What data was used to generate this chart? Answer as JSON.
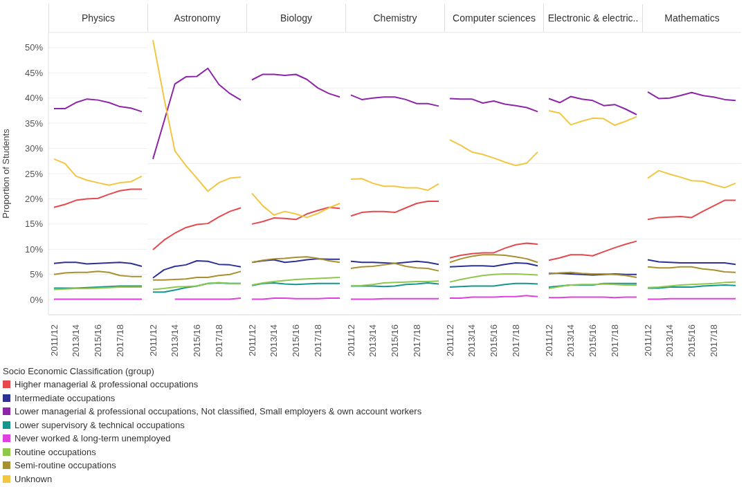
{
  "chart_data": [
    {
      "type": "line",
      "title": "Physics",
      "ylabel": "Proportion of Students",
      "legend_title": "Socio Economic Classification (group)",
      "legend": "bottom",
      "grid": "y",
      "marker": "none",
      "line_style": "solid",
      "categories": [
        "2011/12",
        null,
        "2013/14",
        null,
        "2015/16",
        null,
        "2017/18",
        null,
        null
      ],
      "ylim": [
        -3,
        53
      ],
      "yticks": [
        {
          "value": 0,
          "label": "0%"
        },
        {
          "value": 5,
          "label": "5%"
        },
        {
          "value": 10,
          "label": "10%"
        },
        {
          "value": 15,
          "label": "15%"
        },
        {
          "value": 20,
          "label": "20%"
        },
        {
          "value": 25,
          "label": "25%"
        },
        {
          "value": 30,
          "label": "30%"
        },
        {
          "value": 35,
          "label": "35%"
        },
        {
          "value": 40,
          "label": "40%"
        },
        {
          "value": 45,
          "label": "45%"
        },
        {
          "value": 50,
          "label": "50%"
        }
      ],
      "series": [
        {
          "name": "Higher managerial & professional occupations",
          "color": "#e5484d",
          "values": [
            18.3,
            18.9,
            19.7,
            20.0,
            20.1,
            20.9,
            21.6,
            21.9,
            21.9
          ]
        },
        {
          "name": "Intermediate occupations",
          "color": "#2e3192",
          "values": [
            7.2,
            7.4,
            7.4,
            7.1,
            7.2,
            7.3,
            7.4,
            7.2,
            6.6
          ]
        },
        {
          "name": "Lower managerial & professional occupations, Not classified, Small employers & own account workers",
          "color": "#8e24aa",
          "values": [
            37.9,
            37.9,
            39.1,
            39.8,
            39.6,
            39.1,
            38.3,
            38.0,
            37.3
          ]
        },
        {
          "name": "Lower supervisory & technical occupations",
          "color": "#14968f",
          "values": [
            2.3,
            2.3,
            2.3,
            2.4,
            2.5,
            2.6,
            2.7,
            2.7,
            2.7
          ]
        },
        {
          "name": "Never worked & long-term unemployed",
          "color": "#e040e0",
          "values": [
            0.1,
            0.1,
            0.1,
            0.1,
            0.1,
            0.1,
            0.1,
            0.1,
            0.1
          ]
        },
        {
          "name": "Routine occupations",
          "color": "#8fc74a",
          "values": [
            2.0,
            2.1,
            2.2,
            2.2,
            2.3,
            2.4,
            2.5,
            2.5,
            2.5
          ]
        },
        {
          "name": "Semi-routine occupations",
          "color": "#a8902e",
          "values": [
            5.0,
            5.3,
            5.4,
            5.4,
            5.6,
            5.4,
            4.8,
            4.6,
            4.6
          ]
        },
        {
          "name": "Unknown",
          "color": "#f2c641",
          "values": [
            27.9,
            27.0,
            24.5,
            23.7,
            23.2,
            22.7,
            23.2,
            23.4,
            24.5
          ]
        }
      ]
    },
    {
      "type": "line",
      "title": "Astronomy",
      "grid": "y",
      "marker": "none",
      "line_style": "solid",
      "tick_labels": "x",
      "categories": [
        "2011/12",
        null,
        "2013/14",
        null,
        "2015/16",
        null,
        "2017/18",
        null,
        null
      ],
      "ylim": [
        -3,
        53
      ],
      "series": [
        {
          "color": "#e5484d",
          "values": [
            9.9,
            11.8,
            13.2,
            14.3,
            14.9,
            15.1,
            16.4,
            17.5,
            18.2
          ]
        },
        {
          "color": "#2e3192",
          "values": [
            4.3,
            5.9,
            6.6,
            6.9,
            7.7,
            7.6,
            7.0,
            6.9,
            6.5
          ]
        },
        {
          "color": "#8e24aa",
          "values": [
            27.9,
            35.3,
            42.8,
            44.2,
            44.3,
            45.9,
            42.7,
            40.9,
            39.6
          ]
        },
        {
          "color": "#14968f",
          "values": [
            1.5,
            1.5,
            1.9,
            2.4,
            2.7,
            3.2,
            3.3,
            3.2,
            3.2
          ]
        },
        {
          "color": "#e040e0",
          "values": [
            null,
            null,
            0.1,
            0.1,
            0.1,
            0.1,
            0.1,
            0.1,
            0.3
          ]
        },
        {
          "color": "#8fc74a",
          "values": [
            2.0,
            2.2,
            2.5,
            2.6,
            2.7,
            3.2,
            3.4,
            3.2,
            3.2
          ]
        },
        {
          "color": "#a8902e",
          "values": [
            3.9,
            3.9,
            4.0,
            4.1,
            4.4,
            4.4,
            4.8,
            5.0,
            5.6
          ]
        },
        {
          "color": "#f2c641",
          "values": [
            51.5,
            40.1,
            29.5,
            26.6,
            24.1,
            21.5,
            23.2,
            24.1,
            24.3
          ]
        }
      ]
    },
    {
      "type": "line",
      "title": "Biology",
      "grid": "y",
      "marker": "none",
      "line_style": "solid",
      "tick_labels": "x",
      "categories": [
        "2011/12",
        null,
        "2013/14",
        null,
        "2015/16",
        null,
        "2017/18",
        null,
        null
      ],
      "ylim": [
        -3,
        53
      ],
      "series": [
        {
          "color": "#e5484d",
          "values": [
            15.0,
            15.5,
            16.2,
            16.1,
            15.9,
            17.0,
            17.7,
            18.3,
            18.1
          ]
        },
        {
          "color": "#2e3192",
          "values": [
            7.4,
            7.7,
            7.9,
            7.4,
            7.6,
            7.9,
            8.1,
            8.0,
            8.0
          ]
        },
        {
          "color": "#8e24aa",
          "values": [
            43.6,
            44.7,
            44.7,
            44.5,
            44.7,
            43.7,
            42.0,
            40.9,
            40.2
          ]
        },
        {
          "color": "#14968f",
          "values": [
            2.8,
            3.2,
            3.3,
            3.1,
            3.0,
            3.1,
            3.2,
            3.2,
            3.2
          ]
        },
        {
          "color": "#e040e0",
          "values": [
            0.1,
            0.1,
            0.3,
            0.3,
            0.2,
            0.2,
            0.2,
            0.3,
            0.3
          ]
        },
        {
          "color": "#8fc74a",
          "values": [
            2.9,
            3.3,
            3.6,
            3.8,
            4.0,
            4.1,
            4.2,
            4.3,
            4.4
          ]
        },
        {
          "color": "#a8902e",
          "values": [
            7.4,
            7.8,
            8.1,
            8.2,
            8.4,
            8.5,
            8.2,
            7.7,
            7.4
          ]
        },
        {
          "color": "#f2c641",
          "values": [
            21.1,
            18.6,
            16.8,
            17.5,
            17.0,
            16.3,
            17.1,
            18.2,
            19.1
          ]
        }
      ]
    },
    {
      "type": "line",
      "title": "Chemistry",
      "grid": "y",
      "marker": "none",
      "line_style": "solid",
      "tick_labels": "x",
      "categories": [
        "2011/12",
        null,
        "2013/14",
        null,
        "2015/16",
        null,
        "2017/18",
        null,
        null
      ],
      "ylim": [
        -3,
        53
      ],
      "series": [
        {
          "color": "#e5484d",
          "values": [
            16.6,
            17.3,
            17.5,
            17.5,
            17.3,
            18.2,
            19.1,
            19.5,
            19.5
          ]
        },
        {
          "color": "#2e3192",
          "values": [
            7.6,
            7.4,
            7.4,
            7.3,
            7.2,
            7.4,
            7.6,
            7.4,
            7.0
          ]
        },
        {
          "color": "#8e24aa",
          "values": [
            40.6,
            39.7,
            40.0,
            40.2,
            40.2,
            39.7,
            38.9,
            38.9,
            38.4
          ]
        },
        {
          "color": "#14968f",
          "values": [
            2.7,
            2.7,
            2.7,
            2.6,
            2.7,
            3.0,
            3.1,
            3.3,
            3.1
          ]
        },
        {
          "color": "#e040e0",
          "values": [
            0.1,
            0.1,
            0.1,
            0.2,
            0.2,
            0.2,
            0.2,
            0.2,
            0.2
          ]
        },
        {
          "color": "#8fc74a",
          "values": [
            2.7,
            2.8,
            3.0,
            3.3,
            3.4,
            3.5,
            3.6,
            3.6,
            3.7
          ]
        },
        {
          "color": "#a8902e",
          "values": [
            6.2,
            6.5,
            6.6,
            6.9,
            7.2,
            6.6,
            6.3,
            6.2,
            5.7
          ]
        },
        {
          "color": "#f2c641",
          "values": [
            23.9,
            24.0,
            23.1,
            22.5,
            22.5,
            22.2,
            22.2,
            21.7,
            23.0
          ]
        }
      ]
    },
    {
      "type": "line",
      "title": "Computer sciences",
      "grid": "y",
      "marker": "none",
      "line_style": "solid",
      "tick_labels": "x",
      "categories": [
        "2011/12",
        null,
        "2013/14",
        null,
        "2015/16",
        null,
        "2017/18",
        null,
        null
      ],
      "ylim": [
        -3,
        53
      ],
      "series": [
        {
          "color": "#e5484d",
          "values": [
            8.3,
            8.8,
            9.1,
            9.3,
            9.3,
            10.2,
            10.9,
            11.2,
            11.0
          ]
        },
        {
          "color": "#2e3192",
          "values": [
            6.5,
            6.6,
            6.7,
            6.7,
            6.6,
            7.0,
            7.3,
            7.2,
            6.7
          ]
        },
        {
          "color": "#8e24aa",
          "values": [
            39.9,
            39.8,
            39.8,
            39.0,
            39.4,
            38.8,
            38.5,
            38.1,
            37.3
          ]
        },
        {
          "color": "#14968f",
          "values": [
            2.5,
            2.6,
            2.7,
            2.7,
            2.7,
            3.0,
            3.2,
            3.2,
            3.1
          ]
        },
        {
          "color": "#e040e0",
          "values": [
            0.3,
            0.3,
            0.5,
            0.5,
            0.5,
            0.6,
            0.6,
            0.8,
            0.6
          ]
        },
        {
          "color": "#8fc74a",
          "values": [
            3.5,
            4.0,
            4.4,
            4.8,
            5.0,
            5.1,
            5.1,
            5.0,
            4.9
          ]
        },
        {
          "color": "#a8902e",
          "values": [
            7.4,
            8.1,
            8.6,
            8.9,
            8.9,
            8.8,
            8.5,
            8.1,
            7.4
          ]
        },
        {
          "color": "#f2c641",
          "values": [
            31.7,
            30.6,
            29.3,
            28.8,
            28.1,
            27.3,
            26.6,
            27.1,
            29.3
          ]
        }
      ]
    },
    {
      "type": "line",
      "title": "Electronic & electric..",
      "grid": "y",
      "marker": "none",
      "line_style": "solid",
      "tick_labels": "x",
      "categories": [
        "2011/12",
        null,
        "2013/14",
        null,
        "2015/16",
        null,
        "2017/18",
        null,
        null
      ],
      "ylim": [
        -3,
        53
      ],
      "series": [
        {
          "color": "#e5484d",
          "values": [
            7.8,
            8.3,
            8.9,
            8.9,
            8.7,
            9.5,
            10.3,
            11.0,
            11.6
          ]
        },
        {
          "color": "#2e3192",
          "values": [
            5.2,
            5.2,
            5.1,
            5.0,
            4.9,
            5.0,
            5.1,
            5.0,
            5.0
          ]
        },
        {
          "color": "#8e24aa",
          "values": [
            39.9,
            39.1,
            40.3,
            39.8,
            39.5,
            38.5,
            38.7,
            37.8,
            36.7
          ]
        },
        {
          "color": "#14968f",
          "values": [
            2.5,
            2.7,
            2.9,
            2.9,
            2.9,
            3.2,
            3.2,
            3.2,
            3.2
          ]
        },
        {
          "color": "#e040e0",
          "values": [
            0.4,
            0.4,
            0.5,
            0.5,
            0.5,
            0.5,
            0.4,
            0.5,
            0.5
          ]
        },
        {
          "color": "#8fc74a",
          "values": [
            2.2,
            2.6,
            2.9,
            3.0,
            3.0,
            3.1,
            3.0,
            2.9,
            2.9
          ]
        },
        {
          "color": "#a8902e",
          "values": [
            5.1,
            5.3,
            5.4,
            5.2,
            5.1,
            5.1,
            5.0,
            4.8,
            4.4
          ]
        },
        {
          "color": "#f2c641",
          "values": [
            37.5,
            37.0,
            34.7,
            35.4,
            36.0,
            35.9,
            34.6,
            35.4,
            36.3
          ]
        }
      ]
    },
    {
      "type": "line",
      "title": "Mathematics",
      "grid": "y",
      "marker": "none",
      "line_style": "solid",
      "tick_labels": "x",
      "categories": [
        "2011/12",
        null,
        "2013/14",
        null,
        "2015/16",
        null,
        "2017/18",
        null,
        null
      ],
      "ylim": [
        -3,
        53
      ],
      "series": [
        {
          "color": "#e5484d",
          "values": [
            15.9,
            16.3,
            16.4,
            16.5,
            16.3,
            17.5,
            18.6,
            19.7,
            19.7
          ]
        },
        {
          "color": "#2e3192",
          "values": [
            7.9,
            7.5,
            7.4,
            7.3,
            7.3,
            7.3,
            7.3,
            7.3,
            7.0
          ]
        },
        {
          "color": "#8e24aa",
          "values": [
            41.2,
            39.9,
            40.0,
            40.5,
            41.1,
            40.5,
            40.2,
            39.7,
            39.5
          ]
        },
        {
          "color": "#14968f",
          "values": [
            2.3,
            2.3,
            2.5,
            2.5,
            2.5,
            2.7,
            2.8,
            2.9,
            2.8
          ]
        },
        {
          "color": "#e040e0",
          "values": [
            0.1,
            0.1,
            0.2,
            0.2,
            0.2,
            0.2,
            0.2,
            0.2,
            0.2
          ]
        },
        {
          "color": "#8fc74a",
          "values": [
            2.4,
            2.5,
            2.7,
            2.9,
            3.0,
            3.1,
            3.2,
            3.4,
            3.5
          ]
        },
        {
          "color": "#a8902e",
          "values": [
            6.5,
            6.3,
            6.3,
            6.5,
            6.5,
            6.1,
            5.9,
            5.5,
            5.4
          ]
        },
        {
          "color": "#f2c641",
          "values": [
            24.1,
            25.6,
            24.9,
            24.3,
            23.6,
            23.5,
            22.8,
            22.2,
            23.1
          ]
        }
      ]
    }
  ]
}
